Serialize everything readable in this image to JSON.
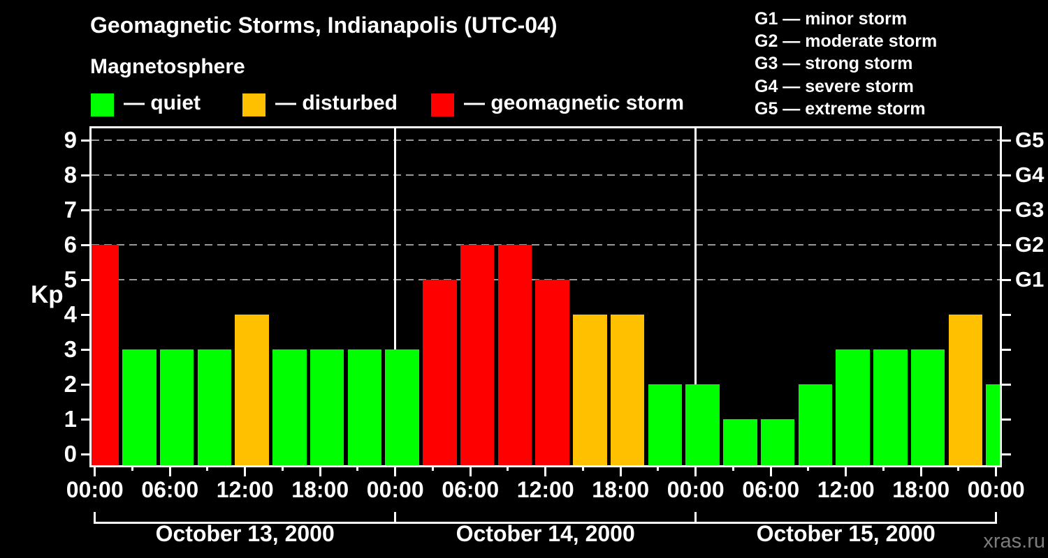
{
  "header": {
    "title": "Geomagnetic Storms, Indianapolis (UTC-04)",
    "subtitle": "Magnetosphere",
    "legend": [
      {
        "name": "quiet",
        "label": "— quiet",
        "color": "#00ff00"
      },
      {
        "name": "disturbed",
        "label": "— disturbed",
        "color": "#ffc000"
      },
      {
        "name": "storm",
        "label": "— geomagnetic storm",
        "color": "#ff0000"
      }
    ],
    "g_scale": [
      {
        "code": "G1",
        "desc": "minor storm",
        "text": "G1 — minor storm"
      },
      {
        "code": "G2",
        "desc": "moderate storm",
        "text": "G2 — moderate storm"
      },
      {
        "code": "G3",
        "desc": "strong storm",
        "text": "G3 — strong storm"
      },
      {
        "code": "G4",
        "desc": "severe storm",
        "text": "G4 — severe storm"
      },
      {
        "code": "G5",
        "desc": "extreme storm",
        "text": "G5 — extreme storm"
      }
    ]
  },
  "chart_data": {
    "type": "bar",
    "title": "Geomagnetic Storms, Indianapolis (UTC-04)",
    "subtitle": "Magnetosphere",
    "ylabel": "Kp",
    "ylim": [
      0,
      9
    ],
    "y_ticks": [
      0,
      1,
      2,
      3,
      4,
      5,
      6,
      7,
      8,
      9
    ],
    "grid_kp_levels": [
      5,
      6,
      7,
      8,
      9
    ],
    "grid_color": "#999999",
    "frame_color": "#ffffff",
    "interval_hours": 3,
    "x_hours": [
      0,
      3,
      6,
      9,
      12,
      15,
      18,
      21,
      24,
      27,
      30,
      33,
      36,
      39,
      42,
      45,
      48,
      51,
      54,
      57,
      60,
      63,
      66,
      69,
      72
    ],
    "values": [
      6,
      3,
      3,
      3,
      4,
      3,
      3,
      3,
      3,
      5,
      6,
      6,
      5,
      4,
      4,
      2,
      2,
      1,
      1,
      2,
      3,
      3,
      3,
      4,
      2
    ],
    "severity_rule": {
      "quiet_max_kp": 3,
      "disturbed_kp": 4,
      "storm_min_kp": 5
    },
    "severity_colors": {
      "quiet": "#00ff00",
      "disturbed": "#ffc000",
      "storm": "#ff0000"
    },
    "x_tick_labels": [
      "00:00",
      "06:00",
      "12:00",
      "18:00",
      "00:00",
      "06:00",
      "12:00",
      "18:00",
      "00:00",
      "06:00",
      "12:00",
      "18:00",
      "00:00"
    ],
    "x_tick_step_hours": 6,
    "day_labels": [
      "October 13, 2000",
      "October 14, 2000",
      "October 15, 2000"
    ],
    "day_span_hours": 24,
    "day_separator_hours": [
      24,
      48
    ],
    "right_axis": [
      {
        "label": "G1",
        "kp": 5
      },
      {
        "label": "G2",
        "kp": 6
      },
      {
        "label": "G3",
        "kp": 7
      },
      {
        "label": "G4",
        "kp": 8
      },
      {
        "label": "G5",
        "kp": 9
      }
    ],
    "legend_position": "top-left",
    "grid": "dashed horizontal at G levels only"
  },
  "watermark": "xras.ru"
}
